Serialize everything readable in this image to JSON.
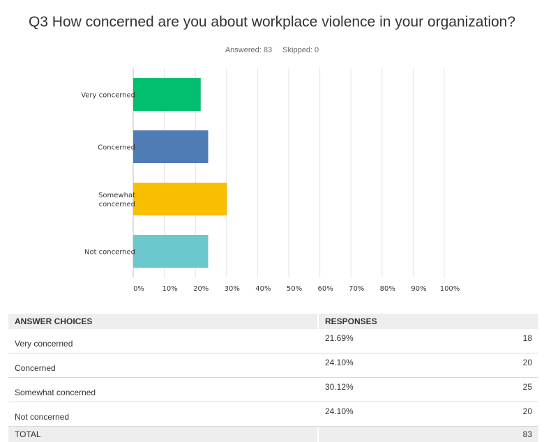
{
  "question": {
    "title": "Q3 How concerned are you about workplace violence in your organization?",
    "answered_label": "Answered: 83",
    "skipped_label": "Skipped: 0"
  },
  "colors": {
    "bar_1": "#00bf6f",
    "bar_2": "#507cb6",
    "bar_3": "#f9be00",
    "bar_4": "#6bc8cd",
    "grid": "#e3e3e3"
  },
  "chart_data": {
    "type": "bar",
    "orientation": "horizontal",
    "categories": [
      "Very concerned",
      "Concerned",
      "Somewhat concerned",
      "Not concerned"
    ],
    "category_label_lines": [
      [
        "Very concerned"
      ],
      [
        "Concerned"
      ],
      [
        "Somewhat",
        "concerned"
      ],
      [
        "Not concerned"
      ]
    ],
    "values": [
      21.69,
      24.1,
      30.12,
      24.1
    ],
    "xlim": [
      0,
      100
    ],
    "x_ticks": [
      "0%",
      "10%",
      "20%",
      "30%",
      "40%",
      "50%",
      "60%",
      "70%",
      "80%",
      "90%",
      "100%"
    ],
    "grid": true
  },
  "table": {
    "headers": [
      "ANSWER CHOICES",
      "RESPONSES"
    ],
    "rows": [
      {
        "choice": "Very concerned",
        "percent": "21.69%",
        "count": "18"
      },
      {
        "choice": "Concerned",
        "percent": "24.10%",
        "count": "20"
      },
      {
        "choice": "Somewhat concerned",
        "percent": "30.12%",
        "count": "25"
      },
      {
        "choice": "Not concerned",
        "percent": "24.10%",
        "count": "20"
      }
    ],
    "total_label": "TOTAL",
    "total_count": "83"
  }
}
